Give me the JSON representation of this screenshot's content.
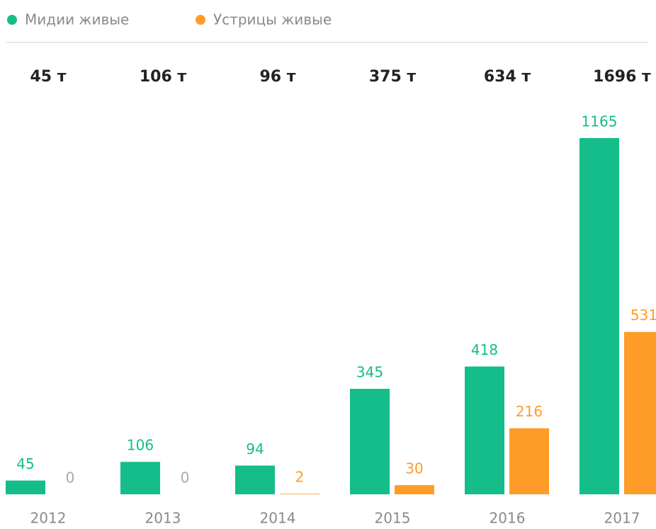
{
  "chart_data": {
    "type": "bar",
    "categories": [
      "2012",
      "2013",
      "2014",
      "2015",
      "2016",
      "2017"
    ],
    "totals": [
      "45 т",
      "106 т",
      "96 т",
      "375 т",
      "634 т",
      "1696 т"
    ],
    "series": [
      {
        "name": "Мидии живые",
        "color": "#14bd8a",
        "values": [
          45,
          106,
          94,
          345,
          418,
          1165
        ]
      },
      {
        "name": "Устрицы живые",
        "color": "#ff9c27",
        "values": [
          0,
          0,
          2,
          30,
          216,
          531
        ]
      }
    ],
    "ylim": [
      0,
      1165
    ]
  }
}
